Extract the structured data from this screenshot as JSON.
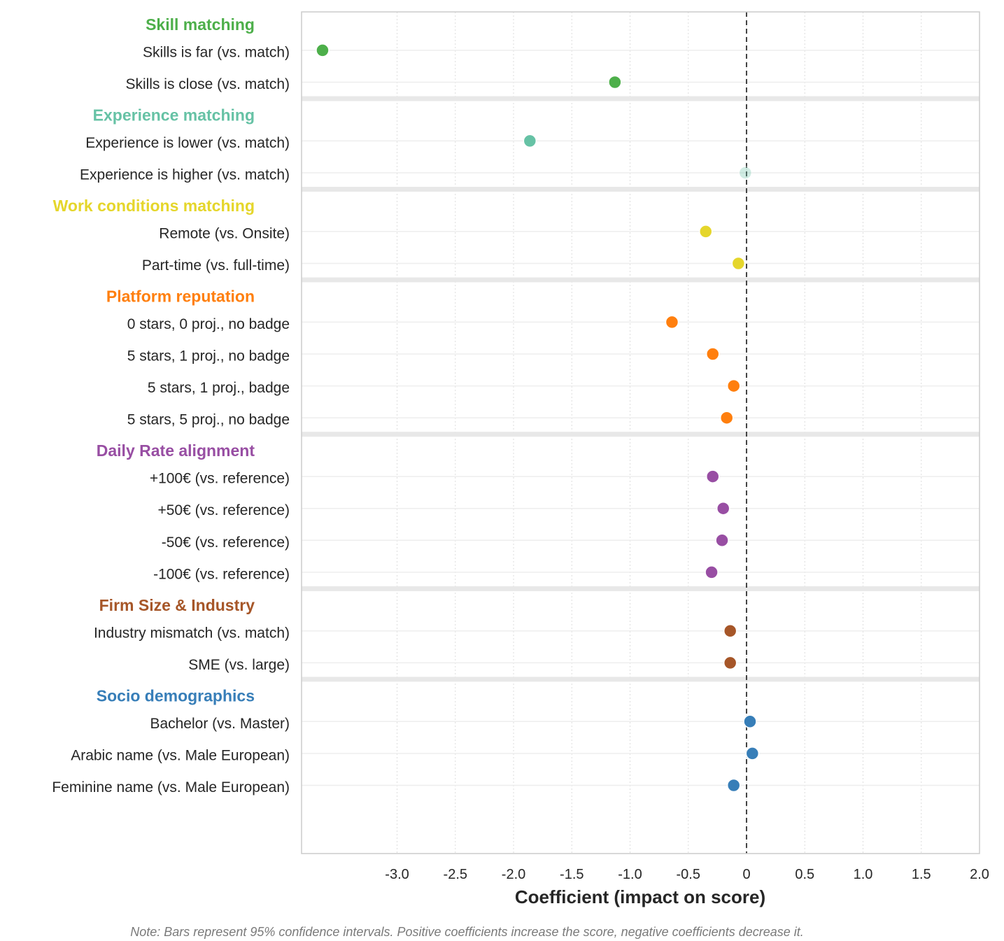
{
  "chart_data": {
    "type": "scatter",
    "orientation": "horizontal",
    "xlabel": "Coefficient (impact on score)",
    "xlim": [
      -3.82,
      2.0
    ],
    "xticks": [
      -3.0,
      -2.5,
      -2.0,
      -1.5,
      -1.0,
      -0.5,
      0,
      0.5,
      1.0,
      1.5,
      2.0
    ],
    "xtick_labels": [
      "-3.0",
      "-2.5",
      "-2.0",
      "-1.5",
      "-1.0",
      "-0.5",
      "0",
      "0.5",
      "1.0",
      "1.5",
      "2.0"
    ],
    "reference_line": 0,
    "grid": true,
    "groups": [
      {
        "name": "Skill matching",
        "color": "#4daf4a",
        "items": [
          {
            "label": "Skills is far (vs. match)",
            "value": -3.64
          },
          {
            "label": "Skills is close (vs. match)",
            "value": -1.13
          }
        ]
      },
      {
        "name": "Experience matching",
        "color": "#66c2a5",
        "items": [
          {
            "label": "Experience is lower (vs. match)",
            "value": -1.86
          },
          {
            "label": "Experience is higher (vs. match)",
            "value": -0.01,
            "faded": true
          }
        ]
      },
      {
        "name": "Work conditions matching",
        "color": "#e5d62b",
        "items": [
          {
            "label": "Remote (vs. Onsite)",
            "value": -0.35
          },
          {
            "label": "Part-time (vs. full-time)",
            "value": -0.07
          }
        ]
      },
      {
        "name": "Platform reputation",
        "color": "#ff7f0e",
        "items": [
          {
            "label": "0 stars, 0 proj., no badge",
            "value": -0.64
          },
          {
            "label": "5 stars, 1 proj., no badge",
            "value": -0.29
          },
          {
            "label": "5 stars, 1 proj., badge",
            "value": -0.11
          },
          {
            "label": "5 stars, 5 proj., no badge",
            "value": -0.17
          }
        ]
      },
      {
        "name": "Daily Rate alignment",
        "color": "#984ea3",
        "items": [
          {
            "label": "+100€ (vs. reference)",
            "value": -0.29
          },
          {
            "label": "+50€ (vs. reference)",
            "value": -0.2
          },
          {
            "label": "-50€ (vs. reference)",
            "value": -0.21
          },
          {
            "label": "-100€ (vs. reference)",
            "value": -0.3
          }
        ]
      },
      {
        "name": "Firm Size & Industry",
        "color": "#a65628",
        "items": [
          {
            "label": "Industry mismatch (vs. match)",
            "value": -0.14
          },
          {
            "label": "SME (vs. large)",
            "value": -0.14
          }
        ]
      },
      {
        "name": "Socio demographics",
        "color": "#377eb8",
        "items": [
          {
            "label": "Bachelor (vs. Master)",
            "value": 0.03
          },
          {
            "label": "Arabic name (vs. Male European)",
            "value": 0.05
          },
          {
            "label": "Feminine name (vs. Male European)",
            "value": -0.11
          }
        ]
      }
    ],
    "note": "Note: Bars represent 95% confidence intervals. Positive coefficients increase the score, negative coefficients decrease it."
  }
}
